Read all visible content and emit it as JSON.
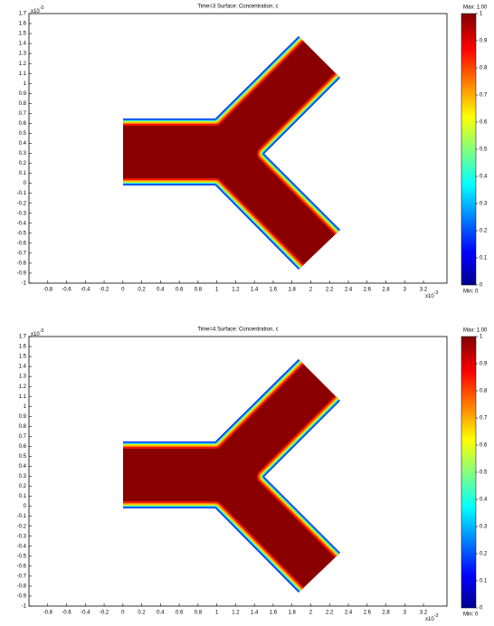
{
  "chart_data": [
    {
      "type": "surface",
      "title": "Time=3    Surface: Concentration, c",
      "exponent": {
        "base": "x10",
        "power": "-3"
      },
      "xlim": [
        -1.0,
        3.45
      ],
      "ylim": [
        -1,
        1.7
      ],
      "xticks": [
        -0.8,
        -0.6,
        -0.4,
        -0.2,
        0,
        0.2,
        0.4,
        0.6,
        0.8,
        1,
        1.2,
        1.4,
        1.6,
        1.8,
        2,
        2.2,
        2.4,
        2.6,
        2.8,
        3,
        3.2
      ],
      "yticks": [
        -1,
        -0.9,
        -0.8,
        -0.7,
        -0.6,
        -0.5,
        -0.4,
        -0.3,
        -0.2,
        -0.1,
        0,
        0.1,
        0.2,
        0.3,
        0.4,
        0.5,
        0.6,
        0.7,
        0.8,
        0.9,
        1,
        1.1,
        1.2,
        1.3,
        1.4,
        1.5,
        1.6,
        1.7
      ],
      "clim": [
        0,
        1
      ],
      "cticks": [
        0,
        0.1,
        0.2,
        0.3,
        0.4,
        0.5,
        0.6,
        0.7,
        0.8,
        0.9,
        1
      ],
      "max_label": "Max: 1.00",
      "min_label": "Min: 0"
    },
    {
      "type": "surface",
      "title": "Time=4    Surface: Concentration, c",
      "exponent": {
        "base": "x10",
        "power": "-3"
      },
      "xlim": [
        -1.0,
        3.45
      ],
      "ylim": [
        -1,
        1.7
      ],
      "xticks": [
        -0.8,
        -0.6,
        -0.4,
        -0.2,
        0,
        0.2,
        0.4,
        0.6,
        0.8,
        1,
        1.2,
        1.4,
        1.6,
        1.8,
        2,
        2.2,
        2.4,
        2.6,
        2.8,
        3,
        3.2
      ],
      "yticks": [
        -1,
        -0.9,
        -0.8,
        -0.7,
        -0.6,
        -0.5,
        -0.4,
        -0.3,
        -0.2,
        -0.1,
        0,
        0.1,
        0.2,
        0.3,
        0.4,
        0.5,
        0.6,
        0.7,
        0.8,
        0.9,
        1,
        1.1,
        1.2,
        1.3,
        1.4,
        1.5,
        1.6,
        1.7
      ],
      "clim": [
        0,
        1
      ],
      "cticks": [
        0,
        0.1,
        0.2,
        0.3,
        0.4,
        0.5,
        0.6,
        0.7,
        0.8,
        0.9,
        1
      ],
      "max_label": "Max: 1.00",
      "min_label": "Min: 0"
    }
  ]
}
